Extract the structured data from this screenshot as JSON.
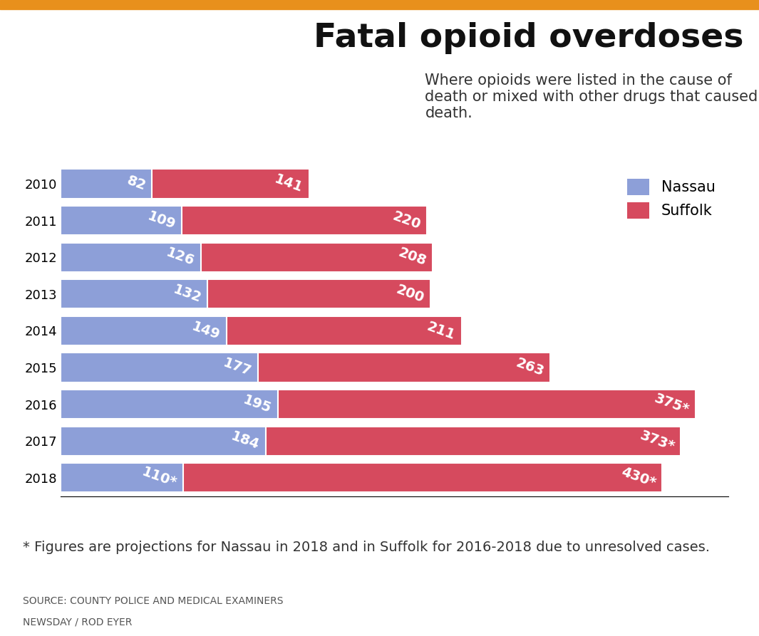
{
  "chart_data": {
    "type": "bar",
    "orientation": "horizontal",
    "stacked": true,
    "title": "Fatal opioid overdoses",
    "subtitle": "Where opioids were listed in the cause of death or mixed with other drugs that caused death.",
    "categories": [
      "2010",
      "2011",
      "2012",
      "2013",
      "2014",
      "2015",
      "2016",
      "2017",
      "2018"
    ],
    "series": [
      {
        "name": "Nassau",
        "color": "#8d9fd8",
        "values": [
          82,
          109,
          126,
          132,
          149,
          177,
          195,
          184,
          110
        ],
        "value_labels": [
          "82",
          "109",
          "126",
          "132",
          "149",
          "177",
          "195",
          "184",
          "110*"
        ]
      },
      {
        "name": "Suffolk",
        "color": "#d64a5e",
        "values": [
          141,
          220,
          208,
          200,
          211,
          263,
          375,
          373,
          430
        ],
        "value_labels": [
          "141",
          "220",
          "208",
          "200",
          "211",
          "263",
          "375*",
          "373*",
          "430*"
        ]
      }
    ],
    "xlim": [
      0,
      600
    ],
    "data_labels": true,
    "legend": "upper right",
    "tick_labels": "y",
    "grid": false,
    "footnote": "* Figures are projections for Nassau in 2018 and in Suffolk for 2016-2018 due to unresolved cases.",
    "source": "SOURCE: COUNTY POLICE AND MEDICAL EXAMINERS",
    "credit": "NEWSDAY / ROD EYER"
  }
}
